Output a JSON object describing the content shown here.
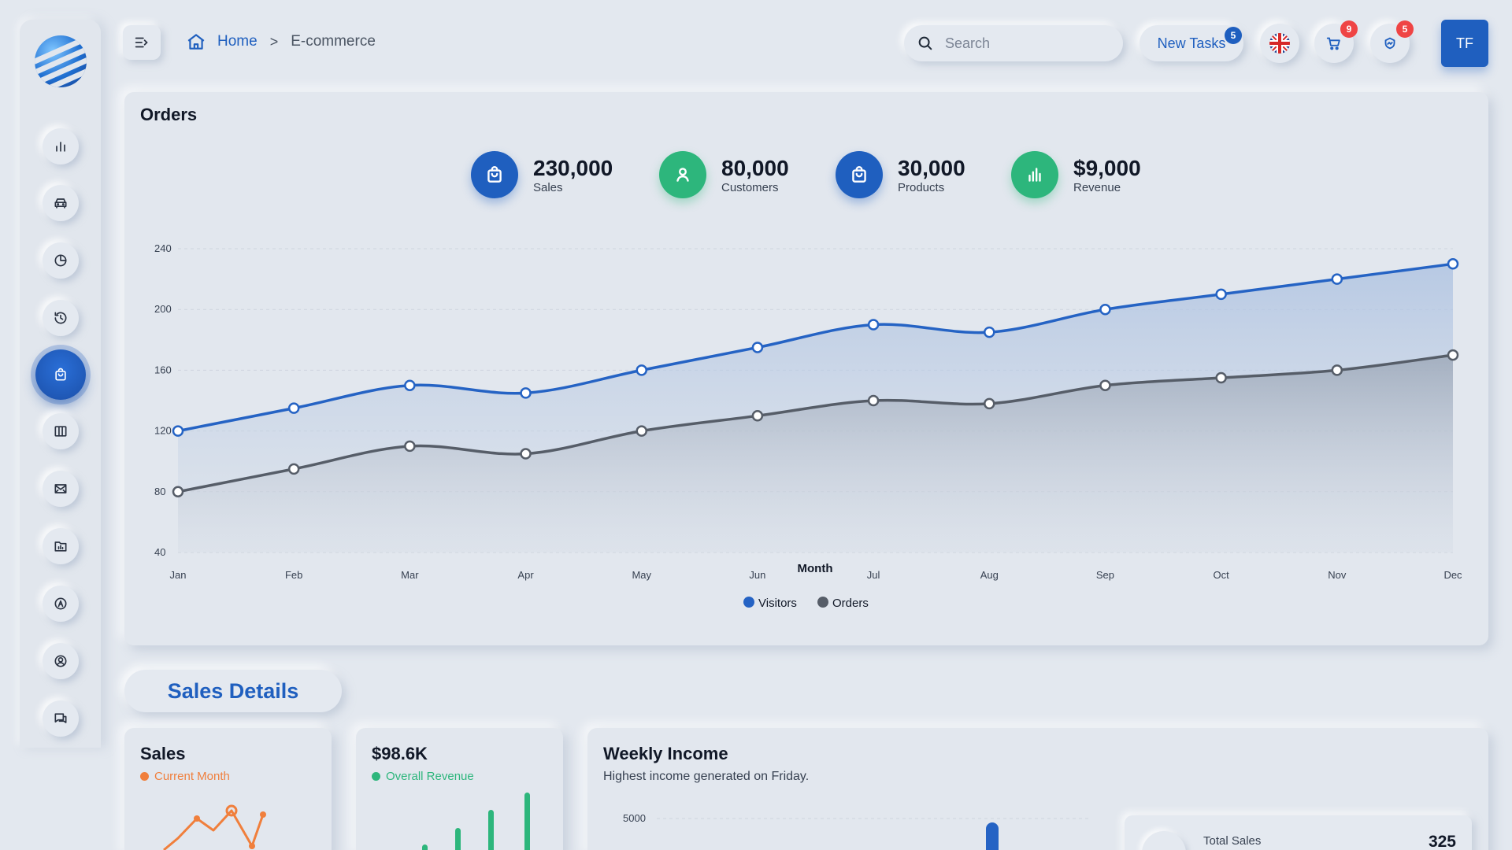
{
  "header": {
    "breadcrumb": {
      "home": "Home",
      "separator": ">",
      "current": "E-commerce"
    },
    "search_placeholder": "Search",
    "new_tasks_label": "New Tasks",
    "new_tasks_count": "5",
    "cart_count": "9",
    "notifications_count": "5",
    "avatar_initials": "TF",
    "icons": [
      "menu-toggle-icon",
      "home-icon",
      "search-icon",
      "uk-flag-icon",
      "cart-icon",
      "notification-icon"
    ]
  },
  "sidebar": {
    "items": [
      {
        "name": "chart-icon"
      },
      {
        "name": "car-icon"
      },
      {
        "name": "pie-chart-icon"
      },
      {
        "name": "history-icon"
      },
      {
        "name": "shopping-bag-icon",
        "active": true
      },
      {
        "name": "grid-icon"
      },
      {
        "name": "mail-icon"
      },
      {
        "name": "folder-chart-icon"
      },
      {
        "name": "compass-icon"
      },
      {
        "name": "user-circle-icon"
      },
      {
        "name": "chat-icon"
      }
    ]
  },
  "orders": {
    "title": "Orders",
    "stats": [
      {
        "value": "230,000",
        "label": "Sales",
        "icon": "shopping-bag-icon",
        "color": "#1f5fbf"
      },
      {
        "value": "80,000",
        "label": "Customers",
        "icon": "user-icon",
        "color": "#2db67c"
      },
      {
        "value": "30,000",
        "label": "Products",
        "icon": "shopping-bag-icon",
        "color": "#1f5fbf"
      },
      {
        "value": "$9,000",
        "label": "Revenue",
        "icon": "bar-chart-icon",
        "color": "#2db67c"
      }
    ]
  },
  "chart_data": {
    "type": "area",
    "categories": [
      "Jan",
      "Feb",
      "Mar",
      "Apr",
      "May",
      "Jun",
      "Jul",
      "Aug",
      "Sep",
      "Oct",
      "Nov",
      "Dec"
    ],
    "series": [
      {
        "name": "Visitors",
        "color": "#2563c4",
        "values": [
          120,
          135,
          150,
          145,
          160,
          175,
          190,
          185,
          200,
          210,
          220,
          230
        ]
      },
      {
        "name": "Orders",
        "color": "#565d68",
        "values": [
          80,
          95,
          110,
          105,
          120,
          130,
          140,
          138,
          150,
          155,
          160,
          170
        ]
      }
    ],
    "xlabel": "Month",
    "ylabel": "",
    "yticks": [
      40,
      80,
      120,
      160,
      200,
      240
    ],
    "ylim": [
      40,
      240
    ],
    "grid": true,
    "legend": "bottom-center"
  },
  "sales_details": {
    "heading": "Sales Details",
    "sales_card": {
      "title": "Sales",
      "subtitle": "Current Month",
      "color": "#f07f3c"
    },
    "revenue_card": {
      "title": "$98.6K",
      "subtitle": "Overall Revenue",
      "color": "#2db67c"
    },
    "weekly_income": {
      "title": "Weekly Income",
      "subtitle": "Highest income generated on Friday.",
      "y_tick": "5000",
      "total_sales_label": "Total Sales",
      "total_sales_value": "325"
    }
  }
}
